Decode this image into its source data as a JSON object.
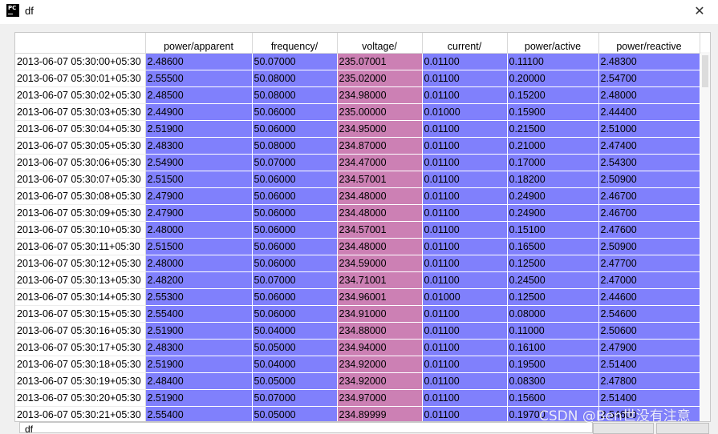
{
  "window": {
    "title": "df",
    "close_glyph": "✕",
    "app_icon": "pycharm-icon",
    "app_icon_text": "PC"
  },
  "colors": {
    "blue_cell": "#8080fc",
    "voltage_cell": "#cc80b4",
    "header_bg": "#ffffff"
  },
  "table": {
    "columns": [
      "power/apparent",
      "frequency/",
      "voltage/",
      "current/",
      "power/active",
      "power/reactive"
    ],
    "rows": [
      {
        "index": "2013-06-07 05:30:00+05:30",
        "values": [
          "2.48600",
          "50.07000",
          "235.07001",
          "0.01100",
          "0.11100",
          "2.48300"
        ]
      },
      {
        "index": "2013-06-07 05:30:01+05:30",
        "values": [
          "2.55500",
          "50.08000",
          "235.02000",
          "0.01100",
          "0.20000",
          "2.54700"
        ]
      },
      {
        "index": "2013-06-07 05:30:02+05:30",
        "values": [
          "2.48500",
          "50.08000",
          "234.98000",
          "0.01100",
          "0.15200",
          "2.48000"
        ]
      },
      {
        "index": "2013-06-07 05:30:03+05:30",
        "values": [
          "2.44900",
          "50.06000",
          "235.00000",
          "0.01000",
          "0.15900",
          "2.44400"
        ]
      },
      {
        "index": "2013-06-07 05:30:04+05:30",
        "values": [
          "2.51900",
          "50.06000",
          "234.95000",
          "0.01100",
          "0.21500",
          "2.51000"
        ]
      },
      {
        "index": "2013-06-07 05:30:05+05:30",
        "values": [
          "2.48300",
          "50.08000",
          "234.87000",
          "0.01100",
          "0.21000",
          "2.47400"
        ]
      },
      {
        "index": "2013-06-07 05:30:06+05:30",
        "values": [
          "2.54900",
          "50.07000",
          "234.47000",
          "0.01100",
          "0.17000",
          "2.54300"
        ]
      },
      {
        "index": "2013-06-07 05:30:07+05:30",
        "values": [
          "2.51500",
          "50.06000",
          "234.57001",
          "0.01100",
          "0.18200",
          "2.50900"
        ]
      },
      {
        "index": "2013-06-07 05:30:08+05:30",
        "values": [
          "2.47900",
          "50.06000",
          "234.48000",
          "0.01100",
          "0.24900",
          "2.46700"
        ]
      },
      {
        "index": "2013-06-07 05:30:09+05:30",
        "values": [
          "2.47900",
          "50.06000",
          "234.48000",
          "0.01100",
          "0.24900",
          "2.46700"
        ]
      },
      {
        "index": "2013-06-07 05:30:10+05:30",
        "values": [
          "2.48000",
          "50.06000",
          "234.57001",
          "0.01100",
          "0.15100",
          "2.47600"
        ]
      },
      {
        "index": "2013-06-07 05:30:11+05:30",
        "values": [
          "2.51500",
          "50.06000",
          "234.48000",
          "0.01100",
          "0.16500",
          "2.50900"
        ]
      },
      {
        "index": "2013-06-07 05:30:12+05:30",
        "values": [
          "2.48000",
          "50.06000",
          "234.59000",
          "0.01100",
          "0.12500",
          "2.47700"
        ]
      },
      {
        "index": "2013-06-07 05:30:13+05:30",
        "values": [
          "2.48200",
          "50.07000",
          "234.71001",
          "0.01100",
          "0.24500",
          "2.47000"
        ]
      },
      {
        "index": "2013-06-07 05:30:14+05:30",
        "values": [
          "2.55300",
          "50.06000",
          "234.96001",
          "0.01000",
          "0.12500",
          "2.44600"
        ]
      },
      {
        "index": "2013-06-07 05:30:15+05:30",
        "values": [
          "2.55400",
          "50.06000",
          "234.91000",
          "0.01100",
          "0.08000",
          "2.54600"
        ]
      },
      {
        "index": "2013-06-07 05:30:16+05:30",
        "values": [
          "2.51900",
          "50.04000",
          "234.88000",
          "0.01100",
          "0.11000",
          "2.50600"
        ]
      },
      {
        "index": "2013-06-07 05:30:17+05:30",
        "values": [
          "2.48300",
          "50.05000",
          "234.94000",
          "0.01100",
          "0.16100",
          "2.47900"
        ]
      },
      {
        "index": "2013-06-07 05:30:18+05:30",
        "values": [
          "2.51900",
          "50.04000",
          "234.92000",
          "0.01100",
          "0.19500",
          "2.51400"
        ]
      },
      {
        "index": "2013-06-07 05:30:19+05:30",
        "values": [
          "2.48400",
          "50.05000",
          "234.92000",
          "0.01100",
          "0.08300",
          "2.47800"
        ]
      },
      {
        "index": "2013-06-07 05:30:20+05:30",
        "values": [
          "2.51900",
          "50.07000",
          "234.97000",
          "0.01100",
          "0.15600",
          "2.51400"
        ]
      },
      {
        "index": "2013-06-07 05:30:21+05:30",
        "values": [
          "2.55400",
          "50.05000",
          "234.89999",
          "0.01100",
          "0.19700",
          "2.54600"
        ]
      }
    ]
  },
  "bottom_bar": {
    "field_value": "df"
  },
  "watermark": "CSDN @Ben世没有注意"
}
